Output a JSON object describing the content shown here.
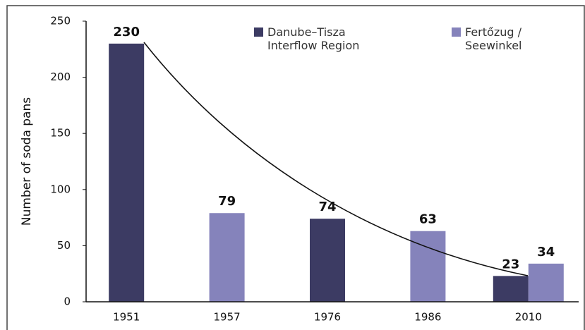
{
  "chart_data": {
    "type": "bar",
    "y_label": "Number of soda pans",
    "categories": [
      "1951",
      "1957",
      "1976",
      "1986",
      "2010"
    ],
    "series": [
      {
        "name": "Danube–Tisza Interflow Region",
        "color": "#3c3b63",
        "values": [
          230,
          null,
          74,
          null,
          23
        ]
      },
      {
        "name": "Fertőzug / Seewinkel",
        "color": "#8583bb",
        "values": [
          null,
          79,
          null,
          63,
          34
        ]
      }
    ],
    "ylim": [
      0,
      250
    ],
    "yticks": [
      0,
      50,
      100,
      150,
      200,
      250
    ]
  }
}
